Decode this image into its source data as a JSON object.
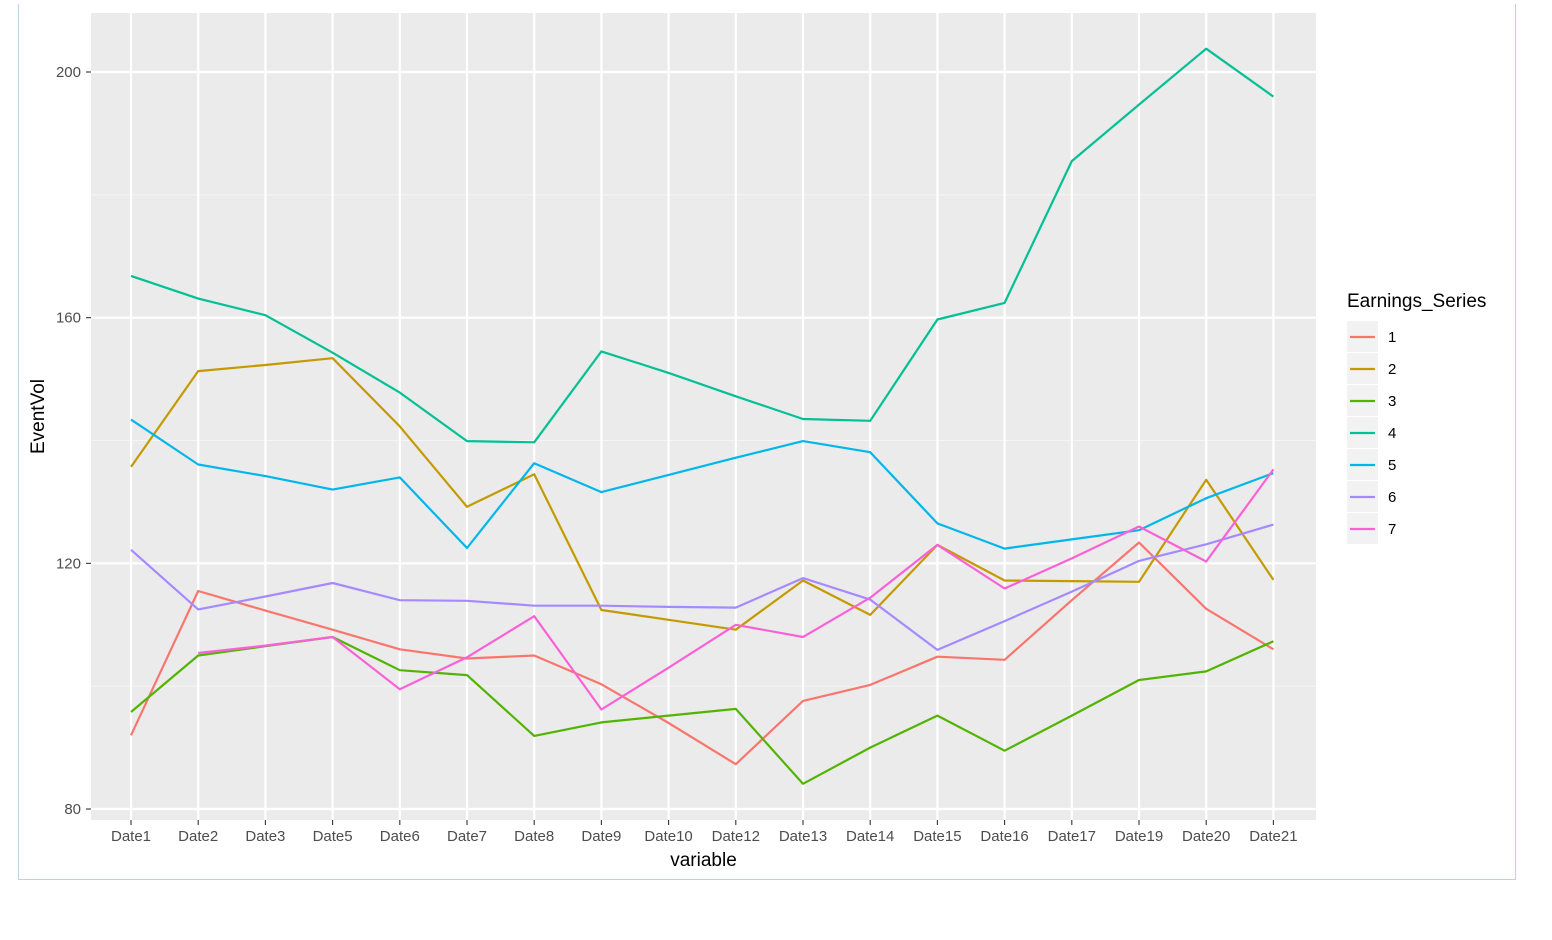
{
  "chart_data": {
    "type": "line",
    "xlabel": "variable",
    "ylabel": "EventVol",
    "categories": [
      "Date1",
      "Date2",
      "Date3",
      "Date5",
      "Date6",
      "Date7",
      "Date8",
      "Date9",
      "Date10",
      "Date12",
      "Date13",
      "Date14",
      "Date15",
      "Date16",
      "Date17",
      "Date19",
      "Date20",
      "Date21"
    ],
    "ylim": [
      78,
      210
    ],
    "yticks": [
      80,
      120,
      160,
      200
    ],
    "grid": true,
    "legend_position": "right",
    "legend_title": "Earnings_Series",
    "series": [
      {
        "name": "1",
        "color": "#F8766D",
        "values": [
          92.0,
          115.5,
          112.3,
          109.2,
          106.0,
          104.5,
          105.0,
          100.3,
          94.0,
          87.3,
          97.6,
          100.2,
          104.8,
          104.3,
          114.0,
          123.4,
          112.6,
          106.0
        ]
      },
      {
        "name": "2",
        "color": "#C49A00",
        "values": [
          135.7,
          151.3,
          152.3,
          153.4,
          142.3,
          129.2,
          134.5,
          112.4,
          110.8,
          109.2,
          117.2,
          111.6,
          123.0,
          117.2,
          117.1,
          117.0,
          133.6,
          117.3
        ]
      },
      {
        "name": "3",
        "color": "#53B400",
        "values": [
          95.8,
          105.0,
          106.5,
          108.0,
          102.6,
          101.8,
          91.9,
          94.1,
          95.2,
          96.3,
          84.1,
          90.0,
          95.2,
          89.5,
          95.2,
          101.0,
          102.4,
          107.3
        ]
      },
      {
        "name": "4",
        "color": "#00C094",
        "values": [
          166.8,
          163.1,
          160.4,
          154.3,
          147.8,
          139.9,
          139.7,
          154.5,
          151.0,
          147.2,
          143.5,
          143.2,
          159.7,
          162.4,
          185.5,
          194.7,
          203.8,
          196.0
        ]
      },
      {
        "name": "5",
        "color": "#00B6EB",
        "values": [
          143.4,
          136.1,
          134.2,
          132.0,
          134.0,
          122.5,
          136.3,
          131.6,
          134.4,
          137.2,
          139.9,
          138.1,
          126.5,
          122.4,
          123.9,
          125.4,
          130.6,
          134.7
        ]
      },
      {
        "name": "6",
        "color": "#A58AFF",
        "values": [
          122.2,
          112.5,
          114.6,
          116.8,
          114.0,
          113.9,
          113.1,
          113.1,
          112.9,
          112.8,
          117.6,
          114.1,
          105.9,
          110.6,
          115.4,
          120.4,
          123.1,
          126.3
        ]
      },
      {
        "name": "7",
        "color": "#FB61D7",
        "values": [
          null,
          105.4,
          106.6,
          108.0,
          99.5,
          104.7,
          111.4,
          96.2,
          103.0,
          110.0,
          108.0,
          114.4,
          123.0,
          115.9,
          120.8,
          126.0,
          120.3,
          135.3
        ]
      }
    ]
  }
}
